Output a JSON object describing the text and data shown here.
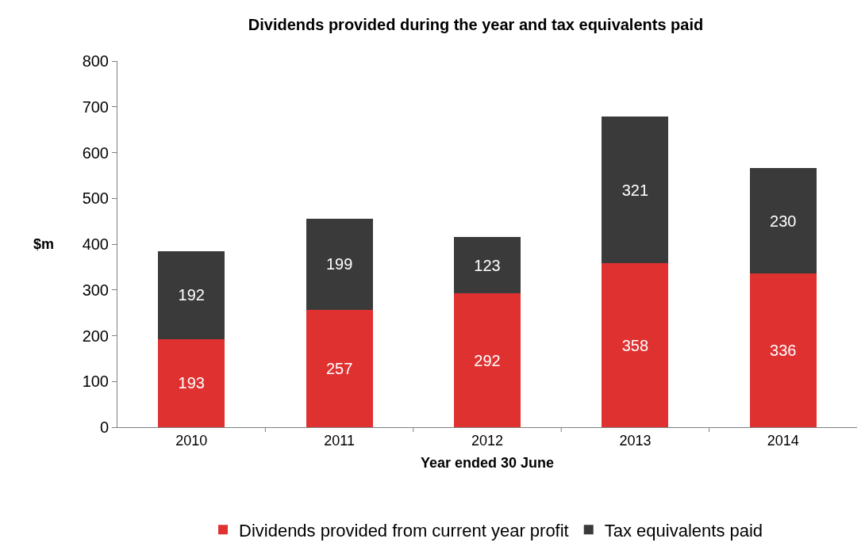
{
  "chart_data": {
    "type": "bar",
    "title": "Dividends provided during the year and tax equivalents paid",
    "xlabel": "Year ended 30 June",
    "ylabel": "$m",
    "categories": [
      "2010",
      "2011",
      "2012",
      "2013",
      "2014"
    ],
    "series": [
      {
        "name": "Dividends provided from current year profit",
        "color": "#e03131",
        "values": [
          193,
          257,
          292,
          358,
          336
        ]
      },
      {
        "name": "Tax equivalents paid",
        "color": "#3a3a3a",
        "values": [
          192,
          199,
          123,
          321,
          230
        ]
      }
    ],
    "stacked": true,
    "data_labels": true,
    "ylim": [
      0,
      800
    ],
    "yticks": [
      0,
      100,
      200,
      300,
      400,
      500,
      600,
      700,
      800
    ],
    "grid": false,
    "legend": "bottom"
  }
}
